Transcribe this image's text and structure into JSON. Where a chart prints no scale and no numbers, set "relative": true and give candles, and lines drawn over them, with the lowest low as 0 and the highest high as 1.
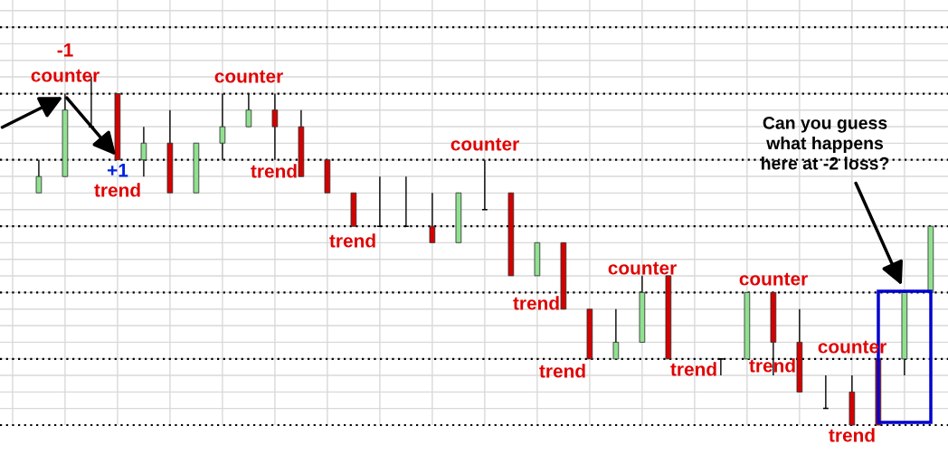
{
  "chart_data": {
    "type": "candlestick",
    "relative": true,
    "grid": true,
    "categories": [
      null,
      null,
      null,
      null,
      null,
      null,
      null,
      null,
      null,
      null,
      null,
      null,
      null,
      null,
      null,
      null,
      null,
      null,
      null,
      null,
      null,
      null,
      null,
      null,
      null,
      null,
      null,
      null,
      null,
      null,
      null,
      null,
      null,
      null,
      null
    ],
    "ohlc": [
      [
        0.667,
        0.762,
        0.667,
        0.714
      ],
      [
        0.714,
        0.952,
        0.714,
        0.905
      ],
      [
        0.857,
        1,
        0.857,
        0.857
      ],
      [
        0.952,
        0.952,
        0.762,
        0.762
      ],
      [
        0.762,
        0.857,
        0.714,
        0.81
      ],
      [
        0.81,
        0.905,
        0.667,
        0.667
      ],
      [
        0.667,
        0.81,
        0.667,
        0.81
      ],
      [
        0.81,
        0.952,
        0.762,
        0.857
      ],
      [
        0.857,
        0.952,
        0.857,
        0.905
      ],
      [
        0.905,
        0.952,
        0.762,
        0.857
      ],
      [
        0.857,
        0.905,
        0.714,
        0.714
      ],
      [
        0.762,
        0.762,
        0.667,
        0.667
      ],
      [
        0.667,
        0.667,
        0.571,
        0.571
      ],
      [
        0.571,
        0.714,
        0.571,
        0.571
      ],
      [
        0.571,
        0.714,
        0.571,
        0.571
      ],
      [
        0.571,
        0.667,
        0.524,
        0.524
      ],
      [
        0.524,
        0.667,
        0.524,
        0.667
      ],
      [
        0.619,
        0.762,
        0.619,
        0.619
      ],
      [
        0.667,
        0.667,
        0.429,
        0.429
      ],
      [
        0.429,
        0.524,
        0.429,
        0.524
      ],
      [
        0.524,
        0.524,
        0.333,
        0.333
      ],
      [
        0.333,
        0.333,
        0.19,
        0.19
      ],
      [
        0.19,
        0.333,
        0.19,
        0.238
      ],
      [
        0.238,
        0.429,
        0.238,
        0.381
      ],
      [
        0.429,
        0.429,
        0.19,
        0.19
      ],
      null,
      [
        0.19,
        0.19,
        0.143,
        0.19
      ],
      [
        0.19,
        0.381,
        0.19,
        0.381
      ],
      [
        0.381,
        0.381,
        0.143,
        0.238
      ],
      [
        0.238,
        0.333,
        0.095,
        0.095
      ],
      [
        0.048,
        0.143,
        0.048,
        0.048
      ],
      [
        0.095,
        0.143,
        0,
        0
      ],
      [
        0.19,
        0.19,
        0,
        0
      ],
      [
        0.19,
        0.381,
        0.143,
        0.381
      ],
      [
        0.381,
        0.571,
        0.381,
        0.571
      ]
    ],
    "colors": [
      "#90e090",
      "#90e090",
      "#000000",
      "#d40000",
      "#90e090",
      "#d40000",
      "#90e090",
      "#90e090",
      "#90e090",
      "#d40000",
      "#d40000",
      "#d40000",
      "#d40000",
      "#000000",
      "#000000",
      "#d40000",
      "#90e090",
      "#000000",
      "#d40000",
      "#90e090",
      "#d40000",
      "#d40000",
      "#90e090",
      "#90e090",
      "#d40000",
      null,
      "#000000",
      "#90e090",
      "#d40000",
      "#d40000",
      "#000000",
      "#d40000",
      "#d40000",
      "#90e090",
      "#90e090"
    ],
    "ref_lines": [
      {
        "axis": "y",
        "value": 0,
        "color": "#000000",
        "line_style": "dotted"
      },
      {
        "axis": "y",
        "value": 0.19,
        "color": "#000000",
        "line_style": "dotted"
      },
      {
        "axis": "y",
        "value": 0.381,
        "color": "#000000",
        "line_style": "dotted"
      },
      {
        "axis": "y",
        "value": 0.571,
        "color": "#000000",
        "line_style": "dotted"
      },
      {
        "axis": "y",
        "value": 0.762,
        "color": "#000000",
        "line_style": "dotted"
      },
      {
        "axis": "y",
        "value": 0.952,
        "color": "#000000",
        "line_style": "dotted"
      },
      {
        "axis": "y",
        "value": 1.143,
        "color": "#000000",
        "line_style": "dotted"
      }
    ],
    "annotations": [
      "-1",
      "counter",
      "+1",
      "trend",
      "counter",
      "trend",
      "counter",
      "trend",
      "counter",
      "trend",
      "trend",
      "trend",
      "counter",
      "trend",
      "counter",
      "trend",
      "Can you guess\nwhat happens\nhere at -2 loss?"
    ]
  }
}
